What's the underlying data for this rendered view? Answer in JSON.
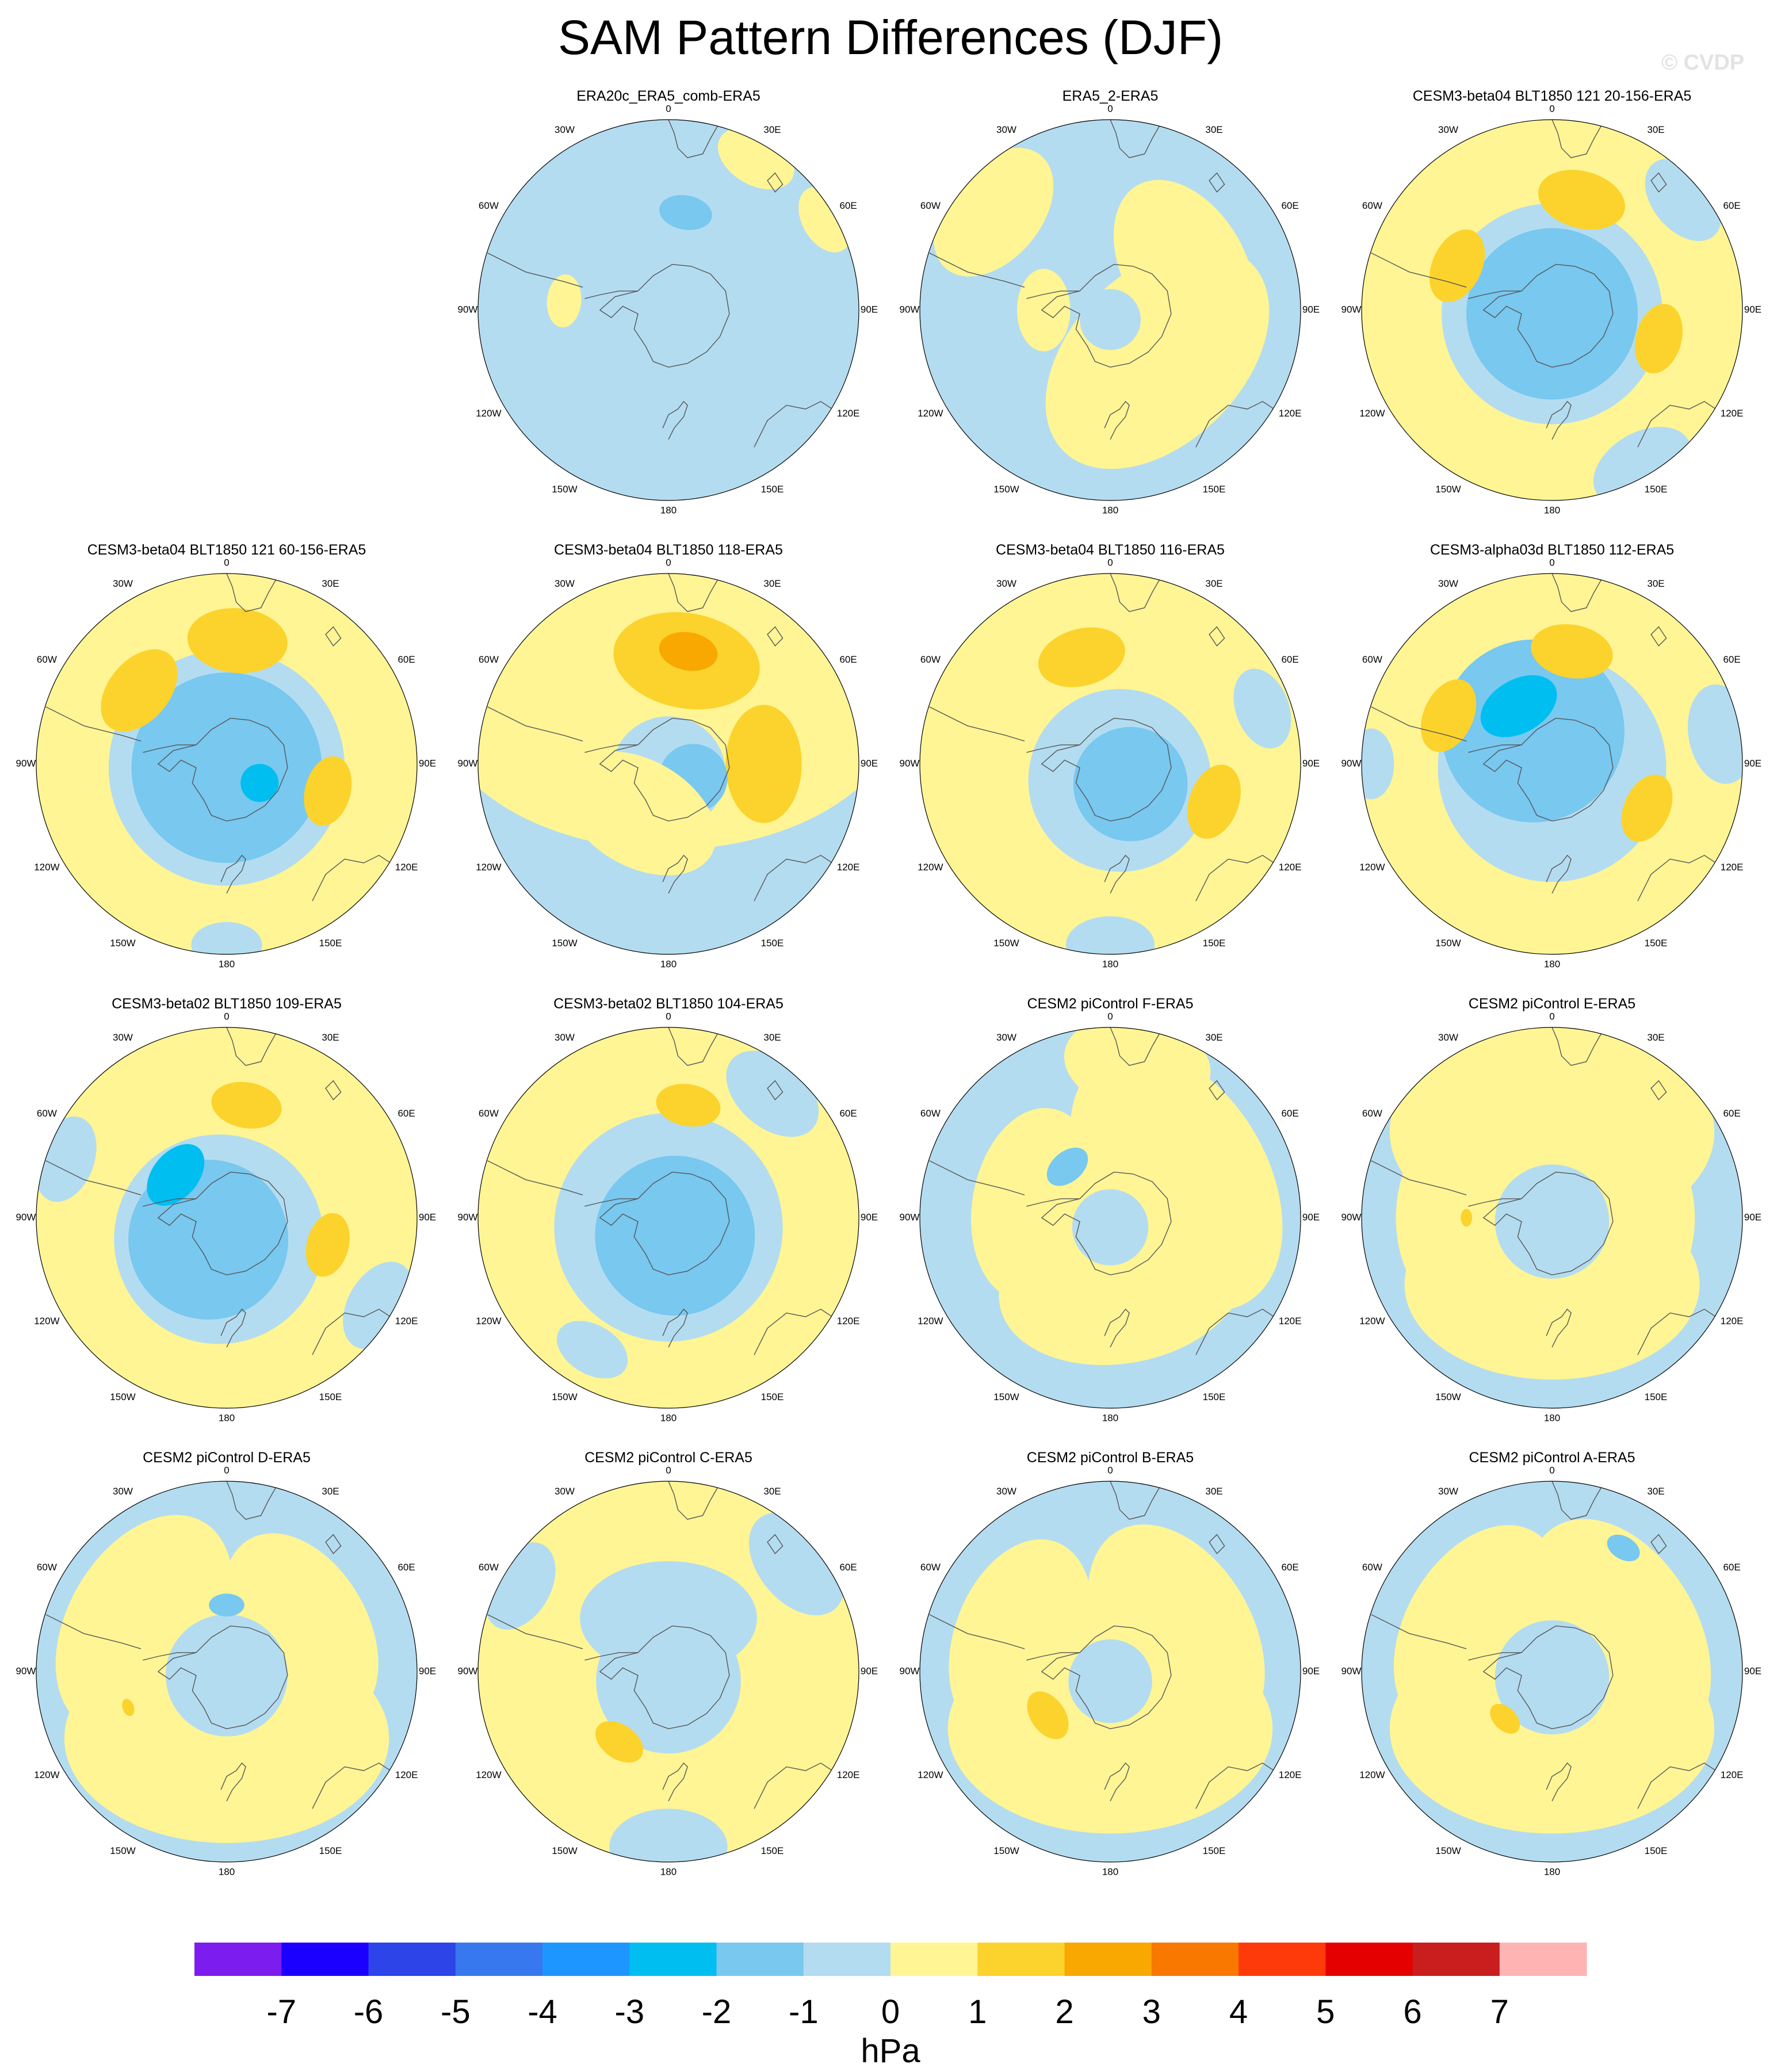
{
  "figure": {
    "title": "SAM Pattern Differences (DJF)",
    "watermark": "© CVDP"
  },
  "colors": {
    "background": "#ffffff",
    "neg1_0": "#b4dcf0",
    "neg2_1": "#78c8f0",
    "neg3_2": "#00bef0",
    "pos0_1": "#fff595",
    "pos1_2": "#fbd32c",
    "pos2_3": "#f8a800",
    "coast": "#555555"
  },
  "chart_data": {
    "type": "heatmap",
    "projection": "south-polar-stereographic",
    "variable": "sea level pressure difference",
    "colorbar": {
      "units": "hPa",
      "levels": [
        -7,
        -6,
        -5,
        -4,
        -3,
        -2,
        -1,
        0,
        1,
        2,
        3,
        4,
        5,
        6,
        7
      ],
      "colors": [
        "#7c1cee",
        "#1c00ff",
        "#2c44e8",
        "#3778ee",
        "#1e96ff",
        "#00bef0",
        "#78c8f0",
        "#b4dcf0",
        "#fff595",
        "#fbd32c",
        "#f8a800",
        "#f87800",
        "#ff3a0a",
        "#e50000",
        "#c81e1e",
        "#ffb4b4"
      ]
    },
    "longitude_labels": [
      "0",
      "30E",
      "60E",
      "90E",
      "120E",
      "150E",
      "180",
      "150W",
      "120W",
      "90W",
      "60W",
      "30W"
    ],
    "panels": [
      {
        "name": "ERA20c_ERA5_comb-ERA5",
        "base": "neg1_0",
        "blobs": [
          {
            "lon": -95,
            "colat": 0.55,
            "size": 0.09,
            "level": "pos0_1"
          },
          {
            "lon": 170,
            "colat": 0.52,
            "size": 0.09,
            "level": "neg2_1"
          },
          {
            "lon": 150,
            "colat": 0.92,
            "size": 0.14,
            "level": "pos0_1"
          },
          {
            "lon": 120,
            "colat": 0.95,
            "size": 0.12,
            "level": "pos0_1"
          }
        ]
      },
      {
        "name": "ERA5_2-ERA5",
        "base": "neg1_0",
        "blobs": [
          {
            "lon": 45,
            "colat": 0.35,
            "size": 0.45,
            "level": "pos0_1"
          },
          {
            "lon": 120,
            "colat": 0.45,
            "size": 0.32,
            "level": "pos0_1"
          },
          {
            "lon": -90,
            "colat": 0.35,
            "size": 0.14,
            "level": "pos0_1"
          },
          {
            "lon": -130,
            "colat": 0.8,
            "size": 0.25,
            "level": "pos0_1"
          },
          {
            "lon": 0,
            "colat": 0.05,
            "size": 0.16,
            "level": "neg1_0"
          }
        ]
      },
      {
        "name": "CESM3-beta04 BLT1850 121 20-156-ERA5",
        "base": "pos0_1",
        "blobs": [
          {
            "lon": 0,
            "colat": 0.02,
            "size": 0.58,
            "level": "neg1_0"
          },
          {
            "lon": 0,
            "colat": 0.02,
            "size": 0.45,
            "level": "neg2_1"
          },
          {
            "lon": 75,
            "colat": 0.58,
            "size": 0.12,
            "level": "pos1_2"
          },
          {
            "lon": -115,
            "colat": 0.55,
            "size": 0.13,
            "level": "pos1_2"
          },
          {
            "lon": 165,
            "colat": 0.6,
            "size": 0.15,
            "level": "pos1_2"
          },
          {
            "lon": 30,
            "colat": 0.95,
            "size": 0.18,
            "level": "neg1_0"
          },
          {
            "lon": 130,
            "colat": 0.9,
            "size": 0.16,
            "level": "neg1_0"
          }
        ]
      },
      {
        "name": "CESM3-beta04 BLT1850 121 60-156-ERA5",
        "base": "pos0_1",
        "blobs": [
          {
            "lon": 0,
            "colat": 0.02,
            "size": 0.62,
            "level": "neg1_0"
          },
          {
            "lon": 0,
            "colat": 0.02,
            "size": 0.5,
            "level": "neg2_1"
          },
          {
            "lon": 60,
            "colat": 0.2,
            "size": 0.1,
            "level": "neg3_2"
          },
          {
            "lon": 75,
            "colat": 0.55,
            "size": 0.12,
            "level": "pos1_2"
          },
          {
            "lon": -130,
            "colat": 0.6,
            "size": 0.16,
            "level": "pos1_2"
          },
          {
            "lon": 175,
            "colat": 0.65,
            "size": 0.17,
            "level": "pos1_2"
          },
          {
            "lon": 0,
            "colat": 0.95,
            "size": 0.12,
            "level": "neg1_0"
          }
        ]
      },
      {
        "name": "CESM3-beta04 BLT1850 118-ERA5",
        "base": "neg1_0",
        "blobs": [
          {
            "lon": 180,
            "colat": 0.35,
            "size": 0.8,
            "level": "pos0_1"
          },
          {
            "lon": 170,
            "colat": 0.55,
            "size": 0.25,
            "level": "pos1_2"
          },
          {
            "lon": 170,
            "colat": 0.6,
            "size": 0.1,
            "level": "pos2_3"
          },
          {
            "lon": 90,
            "colat": 0.5,
            "size": 0.2,
            "level": "pos1_2"
          },
          {
            "lon": 0,
            "colat": 0.05,
            "size": 0.3,
            "level": "neg1_0"
          },
          {
            "lon": 60,
            "colat": 0.15,
            "size": 0.18,
            "level": "neg2_1"
          },
          {
            "lon": -30,
            "colat": 0.3,
            "size": 0.28,
            "level": "pos0_1"
          }
        ]
      },
      {
        "name": "CESM3-beta04 BLT1850 116-ERA5",
        "base": "pos0_1",
        "blobs": [
          {
            "lon": 30,
            "colat": 0.1,
            "size": 0.48,
            "level": "neg1_0"
          },
          {
            "lon": 45,
            "colat": 0.15,
            "size": 0.3,
            "level": "neg2_1"
          },
          {
            "lon": 70,
            "colat": 0.58,
            "size": 0.13,
            "level": "pos1_2"
          },
          {
            "lon": -165,
            "colat": 0.58,
            "size": 0.15,
            "level": "pos1_2"
          },
          {
            "lon": 0,
            "colat": 0.95,
            "size": 0.15,
            "level": "neg1_0"
          },
          {
            "lon": 110,
            "colat": 0.85,
            "size": 0.14,
            "level": "neg1_0"
          }
        ]
      },
      {
        "name": "CESM3-alpha03d BLT1850 112-ERA5",
        "base": "pos0_1",
        "blobs": [
          {
            "lon": 0,
            "colat": 0.02,
            "size": 0.6,
            "level": "neg1_0"
          },
          {
            "lon": -150,
            "colat": 0.2,
            "size": 0.48,
            "level": "neg2_1"
          },
          {
            "lon": -150,
            "colat": 0.35,
            "size": 0.14,
            "level": "neg3_2"
          },
          {
            "lon": 65,
            "colat": 0.55,
            "size": 0.12,
            "level": "pos1_2"
          },
          {
            "lon": -115,
            "colat": 0.6,
            "size": 0.13,
            "level": "pos1_2"
          },
          {
            "lon": 170,
            "colat": 0.6,
            "size": 0.14,
            "level": "pos1_2"
          },
          {
            "lon": 100,
            "colat": 0.9,
            "size": 0.17,
            "level": "neg1_0"
          },
          {
            "lon": -90,
            "colat": 0.95,
            "size": 0.12,
            "level": "neg1_0"
          }
        ]
      },
      {
        "name": "CESM3-beta02 BLT1850 109-ERA5",
        "base": "pos0_1",
        "blobs": [
          {
            "lon": -20,
            "colat": 0.12,
            "size": 0.55,
            "level": "neg1_0"
          },
          {
            "lon": -40,
            "colat": 0.15,
            "size": 0.42,
            "level": "neg2_1"
          },
          {
            "lon": -130,
            "colat": 0.35,
            "size": 0.12,
            "level": "neg3_2"
          },
          {
            "lon": 75,
            "colat": 0.55,
            "size": 0.11,
            "level": "pos1_2"
          },
          {
            "lon": 170,
            "colat": 0.6,
            "size": 0.12,
            "level": "pos1_2"
          },
          {
            "lon": -110,
            "colat": 0.9,
            "size": 0.15,
            "level": "neg1_0"
          },
          {
            "lon": 60,
            "colat": 0.92,
            "size": 0.16,
            "level": "neg1_0"
          }
        ]
      },
      {
        "name": "CESM3-beta02 BLT1850 104-ERA5",
        "base": "pos0_1",
        "blobs": [
          {
            "lon": 0,
            "colat": 0.05,
            "size": 0.6,
            "level": "neg1_0"
          },
          {
            "lon": 20,
            "colat": 0.1,
            "size": 0.42,
            "level": "neg2_1"
          },
          {
            "lon": 170,
            "colat": 0.6,
            "size": 0.11,
            "level": "pos1_2"
          },
          {
            "lon": 140,
            "colat": 0.85,
            "size": 0.18,
            "level": "neg1_0"
          },
          {
            "lon": -30,
            "colat": 0.8,
            "size": 0.13,
            "level": "neg1_0"
          }
        ]
      },
      {
        "name": "CESM2 piControl F-ERA5",
        "base": "neg1_0",
        "blobs": [
          {
            "lon": 120,
            "colat": 0.4,
            "size": 0.48,
            "level": "pos0_1"
          },
          {
            "lon": 10,
            "colat": 0.35,
            "size": 0.42,
            "level": "pos0_1"
          },
          {
            "lon": -100,
            "colat": 0.4,
            "size": 0.33,
            "level": "pos0_1"
          },
          {
            "lon": 0,
            "colat": 0.05,
            "size": 0.2,
            "level": "neg1_0"
          },
          {
            "lon": -140,
            "colat": 0.35,
            "size": 0.08,
            "level": "neg2_1"
          },
          {
            "lon": 170,
            "colat": 0.82,
            "size": 0.25,
            "level": "pos0_1"
          }
        ]
      },
      {
        "name": "CESM2 piControl E-ERA5",
        "base": "neg1_0",
        "blobs": [
          {
            "lon": 180,
            "colat": 0.45,
            "size": 0.55,
            "level": "pos0_1"
          },
          {
            "lon": 0,
            "colat": 0.35,
            "size": 0.5,
            "level": "pos0_1"
          },
          {
            "lon": -90,
            "colat": 0.5,
            "size": 0.32,
            "level": "pos0_1"
          },
          {
            "lon": 90,
            "colat": 0.45,
            "size": 0.3,
            "level": "pos0_1"
          },
          {
            "lon": 0,
            "colat": 0.02,
            "size": 0.3,
            "level": "neg1_0"
          },
          {
            "lon": -90,
            "colat": 0.45,
            "size": 0.03,
            "level": "pos1_2"
          }
        ]
      },
      {
        "name": "CESM2 piControl D-ERA5",
        "base": "neg1_0",
        "blobs": [
          {
            "lon": 0,
            "colat": 0.35,
            "size": 0.55,
            "level": "pos0_1"
          },
          {
            "lon": -120,
            "colat": 0.5,
            "size": 0.4,
            "level": "pos0_1"
          },
          {
            "lon": 120,
            "colat": 0.45,
            "size": 0.35,
            "level": "pos0_1"
          },
          {
            "lon": 0,
            "colat": 0.02,
            "size": 0.32,
            "level": "neg1_0"
          },
          {
            "lon": 180,
            "colat": 0.35,
            "size": 0.06,
            "level": "neg2_1"
          },
          {
            "lon": -70,
            "colat": 0.55,
            "size": 0.03,
            "level": "pos1_2"
          }
        ]
      },
      {
        "name": "CESM2 piControl C-ERA5",
        "base": "pos0_1",
        "blobs": [
          {
            "lon": 0,
            "colat": 0.05,
            "size": 0.38,
            "level": "neg1_0"
          },
          {
            "lon": 180,
            "colat": 0.28,
            "size": 0.3,
            "level": "neg1_0"
          },
          {
            "lon": 0,
            "colat": 0.92,
            "size": 0.2,
            "level": "neg1_0"
          },
          {
            "lon": 130,
            "colat": 0.88,
            "size": 0.2,
            "level": "neg1_0"
          },
          {
            "lon": -120,
            "colat": 0.9,
            "size": 0.16,
            "level": "neg1_0"
          },
          {
            "lon": -35,
            "colat": 0.45,
            "size": 0.09,
            "level": "pos1_2"
          }
        ]
      },
      {
        "name": "CESM2 piControl B-ERA5",
        "base": "neg1_0",
        "blobs": [
          {
            "lon": 0,
            "colat": 0.3,
            "size": 0.55,
            "level": "pos0_1"
          },
          {
            "lon": 120,
            "colat": 0.4,
            "size": 0.4,
            "level": "pos0_1"
          },
          {
            "lon": -110,
            "colat": 0.5,
            "size": 0.35,
            "level": "pos0_1"
          },
          {
            "lon": 0,
            "colat": 0.05,
            "size": 0.22,
            "level": "neg1_0"
          },
          {
            "lon": -55,
            "colat": 0.4,
            "size": 0.09,
            "level": "pos1_2"
          }
        ]
      },
      {
        "name": "CESM2 piControl A-ERA5",
        "base": "neg1_0",
        "blobs": [
          {
            "lon": 0,
            "colat": 0.3,
            "size": 0.55,
            "level": "pos0_1"
          },
          {
            "lon": 120,
            "colat": 0.4,
            "size": 0.42,
            "level": "pos0_1"
          },
          {
            "lon": -120,
            "colat": 0.45,
            "size": 0.38,
            "level": "pos0_1"
          },
          {
            "lon": 0,
            "colat": 0.03,
            "size": 0.3,
            "level": "neg1_0"
          },
          {
            "lon": -45,
            "colat": 0.35,
            "size": 0.06,
            "level": "pos1_2"
          },
          {
            "lon": 150,
            "colat": 0.75,
            "size": 0.06,
            "level": "neg2_1"
          }
        ]
      }
    ]
  }
}
